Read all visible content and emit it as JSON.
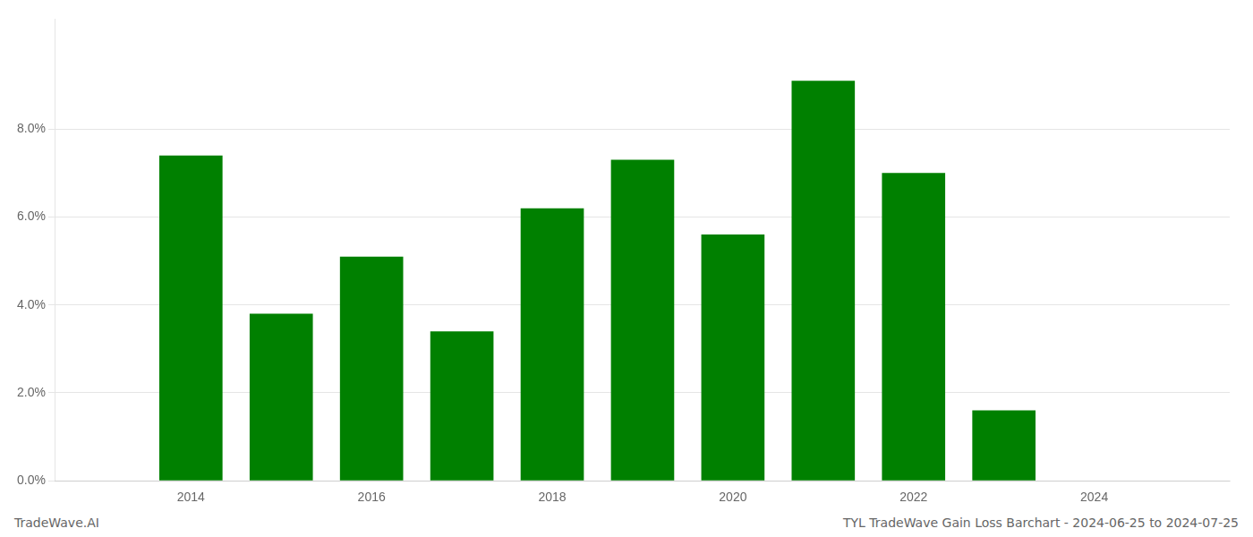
{
  "chart_data": {
    "type": "bar",
    "x": [
      2014,
      2015,
      2016,
      2017,
      2018,
      2019,
      2020,
      2021,
      2022,
      2023
    ],
    "values": [
      0.074,
      0.038,
      0.051,
      0.034,
      0.062,
      0.073,
      0.056,
      0.091,
      0.07,
      0.016
    ],
    "color": "#008000",
    "xlim": [
      2012.5,
      2025.5
    ],
    "xticks": [
      2014,
      2016,
      2018,
      2020,
      2022,
      2024
    ],
    "ylim": [
      0,
      0.105
    ],
    "yticks": [
      {
        "value": 0.0,
        "label": "0.0%"
      },
      {
        "value": 0.02,
        "label": "2.0%"
      },
      {
        "value": 0.04,
        "label": "4.0%"
      },
      {
        "value": 0.06,
        "label": "6.0%"
      },
      {
        "value": 0.08,
        "label": "8.0%"
      }
    ],
    "grid": "y",
    "annotations": [
      "TradeWave.AI",
      "TYL TradeWave Gain Loss Barchart - 2024-06-25 to 2024-07-25"
    ]
  }
}
